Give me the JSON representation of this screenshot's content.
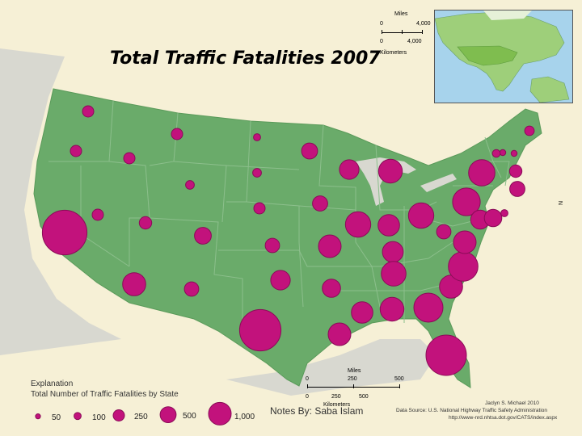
{
  "title": "Total Traffic Fatalities 2007",
  "scale_top": {
    "miles_label": "Miles",
    "miles_ticks": [
      "0",
      "4,000"
    ],
    "km_ticks": [
      "0",
      "4,000"
    ],
    "km_label": "Kilometers"
  },
  "scale_bottom": {
    "miles_label": "Miles",
    "miles_ticks": [
      "0",
      "250",
      "500"
    ],
    "km_ticks": [
      "0",
      "250",
      "500"
    ],
    "km_label": "Kilometers"
  },
  "legend": {
    "heading": "Explanation",
    "subheading": "Total Number of Traffic Fatalities by State",
    "items": [
      {
        "label": "50",
        "value": 50
      },
      {
        "label": "100",
        "value": 100
      },
      {
        "label": "250",
        "value": 250
      },
      {
        "label": "500",
        "value": 500
      },
      {
        "label": "1,000",
        "value": 1000
      }
    ]
  },
  "credits": {
    "author": "Jaclyn S. Michael 2010",
    "source": "Data Source: U.S. National Highway Traffic Safety Administration",
    "url": "http://www-nrd.nhtsa.dot.gov/CATS/index.aspx"
  },
  "footer_note": "Notes By: Saba Islam",
  "north_label": "N",
  "colors": {
    "background": "#f6f0d6",
    "land": "#6aab6a",
    "state_borders": "#8cbf8c",
    "symbol": "#c2127c",
    "symbol_stroke": "#8a0c57",
    "water": "#a7d3ec"
  },
  "symbols": [
    {
      "state": "Washington",
      "value": 250
    },
    {
      "state": "Oregon",
      "value": 250
    },
    {
      "state": "California",
      "value": 3900
    },
    {
      "state": "Nevada",
      "value": 250
    },
    {
      "state": "Idaho",
      "value": 250
    },
    {
      "state": "Montana",
      "value": 250
    },
    {
      "state": "Wyoming",
      "value": 150
    },
    {
      "state": "Utah",
      "value": 300
    },
    {
      "state": "Arizona",
      "value": 1050
    },
    {
      "state": "Colorado",
      "value": 550
    },
    {
      "state": "New Mexico",
      "value": 400
    },
    {
      "state": "North Dakota",
      "value": 100
    },
    {
      "state": "South Dakota",
      "value": 150
    },
    {
      "state": "Nebraska",
      "value": 250
    },
    {
      "state": "Kansas",
      "value": 400
    },
    {
      "state": "Oklahoma",
      "value": 750
    },
    {
      "state": "Texas",
      "value": 3350
    },
    {
      "state": "Minnesota",
      "value": 500
    },
    {
      "state": "Iowa",
      "value": 450
    },
    {
      "state": "Missouri",
      "value": 1000
    },
    {
      "state": "Arkansas",
      "value": 650
    },
    {
      "state": "Louisiana",
      "value": 1000
    },
    {
      "state": "Wisconsin",
      "value": 750
    },
    {
      "state": "Illinois",
      "value": 1250
    },
    {
      "state": "Michigan",
      "value": 1100
    },
    {
      "state": "Indiana",
      "value": 900
    },
    {
      "state": "Ohio",
      "value": 1250
    },
    {
      "state": "Kentucky",
      "value": 850
    },
    {
      "state": "Tennessee",
      "value": 1200
    },
    {
      "state": "Mississippi",
      "value": 900
    },
    {
      "state": "Alabama",
      "value": 1100
    },
    {
      "state": "Georgia",
      "value": 1650
    },
    {
      "state": "Florida",
      "value": 3200
    },
    {
      "state": "South Carolina",
      "value": 1050
    },
    {
      "state": "North Carolina",
      "value": 1700
    },
    {
      "state": "Virginia",
      "value": 1000
    },
    {
      "state": "West Virginia",
      "value": 400
    },
    {
      "state": "Pennsylvania",
      "value": 1500
    },
    {
      "state": "New York",
      "value": 1350
    },
    {
      "state": "New Jersey",
      "value": 700
    },
    {
      "state": "Maryland",
      "value": 600
    },
    {
      "state": "Delaware",
      "value": 100
    },
    {
      "state": "Connecticut",
      "value": 300
    },
    {
      "state": "Massachusetts",
      "value": 450
    },
    {
      "state": "Rhode Island",
      "value": 70
    },
    {
      "state": "Vermont",
      "value": 70
    },
    {
      "state": "New Hampshire",
      "value": 120
    },
    {
      "state": "Maine",
      "value": 180
    }
  ]
}
